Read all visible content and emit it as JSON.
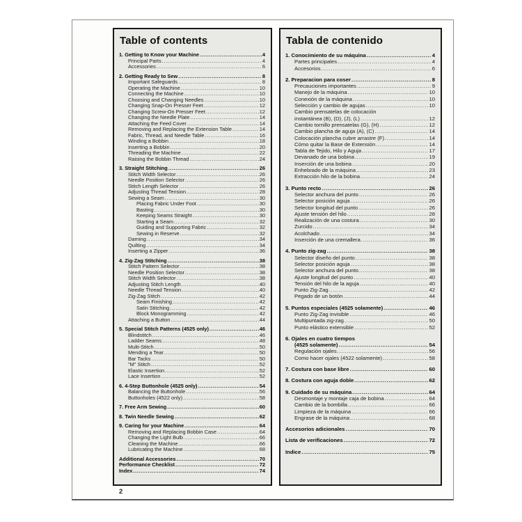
{
  "page_number": "2",
  "english": {
    "title": "Table of contents",
    "entries": [
      {
        "label": "1. Getting to Know your Machine",
        "page": "4",
        "level": 0,
        "bold": 1,
        "gap": 0
      },
      {
        "label": "Principal Parts",
        "page": "4",
        "level": 1,
        "bold": 0,
        "gap": 0
      },
      {
        "label": "Accessories",
        "page": "6",
        "level": 1,
        "bold": 0,
        "gap": 0
      },
      {
        "label": "2. Getting Ready to Sew",
        "page": "8",
        "level": 0,
        "bold": 1,
        "gap": 1
      },
      {
        "label": "Important Safeguards",
        "page": "8",
        "level": 1,
        "bold": 0,
        "gap": 0
      },
      {
        "label": "Operating the Machine",
        "page": "10",
        "level": 1,
        "bold": 0,
        "gap": 0
      },
      {
        "label": "Connecting the Machine",
        "page": "10",
        "level": 1,
        "bold": 0,
        "gap": 0
      },
      {
        "label": "Choosing and Changing Needles",
        "page": "10",
        "level": 1,
        "bold": 0,
        "gap": 0
      },
      {
        "label": "Changing Snap-On Presser Feet",
        "page": "12",
        "level": 1,
        "bold": 0,
        "gap": 0
      },
      {
        "label": "Changing Screw-On Presser Feet",
        "page": "12",
        "level": 1,
        "bold": 0,
        "gap": 0
      },
      {
        "label": "Changing the Needle Plate",
        "page": "14",
        "level": 1,
        "bold": 0,
        "gap": 0
      },
      {
        "label": "Attaching the Feed Cover",
        "page": "14",
        "level": 1,
        "bold": 0,
        "gap": 0
      },
      {
        "label": "Removing and Replacing the Extension Table",
        "page": "14",
        "level": 1,
        "bold": 0,
        "gap": 0
      },
      {
        "label": "Fabric, Thread, and Needle Table",
        "page": "16",
        "level": 1,
        "bold": 0,
        "gap": 0
      },
      {
        "label": "Winding a Bobbin",
        "page": "18",
        "level": 1,
        "bold": 0,
        "gap": 0
      },
      {
        "label": "Inserting a Bobbin",
        "page": "20",
        "level": 1,
        "bold": 0,
        "gap": 0
      },
      {
        "label": "Threading the Machine",
        "page": "22",
        "level": 1,
        "bold": 0,
        "gap": 0
      },
      {
        "label": "Raising the Bobbin Thread",
        "page": "24",
        "level": 1,
        "bold": 0,
        "gap": 0
      },
      {
        "label": "3. Straight Stitching",
        "page": "26",
        "level": 0,
        "bold": 1,
        "gap": 1
      },
      {
        "label": "Stitch Width Selector",
        "page": "26",
        "level": 1,
        "bold": 0,
        "gap": 0
      },
      {
        "label": "Needle Position Selector",
        "page": "26",
        "level": 1,
        "bold": 0,
        "gap": 0
      },
      {
        "label": "Stitch Length Selector",
        "page": "26",
        "level": 1,
        "bold": 0,
        "gap": 0
      },
      {
        "label": "Adjusting Thread Tension",
        "page": "28",
        "level": 1,
        "bold": 0,
        "gap": 0
      },
      {
        "label": "Sewing a Seam",
        "page": "30",
        "level": 1,
        "bold": 0,
        "gap": 0
      },
      {
        "label": "Placing Fabric Under Foot",
        "page": "30",
        "level": 2,
        "bold": 0,
        "gap": 0
      },
      {
        "label": "Basting",
        "page": "30",
        "level": 2,
        "bold": 0,
        "gap": 0
      },
      {
        "label": "Keeping Seams Straight",
        "page": "30",
        "level": 2,
        "bold": 0,
        "gap": 0
      },
      {
        "label": "Starting a Seam",
        "page": "32",
        "level": 2,
        "bold": 0,
        "gap": 0
      },
      {
        "label": "Guiding and Supporting Fabric",
        "page": "32",
        "level": 2,
        "bold": 0,
        "gap": 0
      },
      {
        "label": "Sewing in Reserve",
        "page": "32",
        "level": 2,
        "bold": 0,
        "gap": 0
      },
      {
        "label": "Darning",
        "page": "34",
        "level": 1,
        "bold": 0,
        "gap": 0
      },
      {
        "label": "Quilting",
        "page": "34",
        "level": 1,
        "bold": 0,
        "gap": 0
      },
      {
        "label": "Inserting a Zipper",
        "page": "36",
        "level": 1,
        "bold": 0,
        "gap": 0
      },
      {
        "label": "4. Zig-Zag Stitching",
        "page": "38",
        "level": 0,
        "bold": 1,
        "gap": 1
      },
      {
        "label": "Stitch Pattern Selector",
        "page": "38",
        "level": 1,
        "bold": 0,
        "gap": 0
      },
      {
        "label": "Needle Position Selector",
        "page": "38",
        "level": 1,
        "bold": 0,
        "gap": 0
      },
      {
        "label": "Stitch Width Selector",
        "page": "38",
        "level": 1,
        "bold": 0,
        "gap": 0
      },
      {
        "label": "Adjusting Stitch Length",
        "page": "40",
        "level": 1,
        "bold": 0,
        "gap": 0
      },
      {
        "label": "Needle Thread Tension",
        "page": "40",
        "level": 1,
        "bold": 0,
        "gap": 0
      },
      {
        "label": "Zig-Zag Stitch",
        "page": "42",
        "level": 1,
        "bold": 0,
        "gap": 0
      },
      {
        "label": "Seam Finishing",
        "page": "42",
        "level": 2,
        "bold": 0,
        "gap": 0
      },
      {
        "label": "Satin Stitching",
        "page": "42",
        "level": 2,
        "bold": 0,
        "gap": 0
      },
      {
        "label": "Block Monogramming",
        "page": "42",
        "level": 2,
        "bold": 0,
        "gap": 0
      },
      {
        "label": "Attaching a Button",
        "page": "44",
        "level": 1,
        "bold": 0,
        "gap": 0
      },
      {
        "label": "5. Special Stitch Patterns (4525 only)",
        "page": "46",
        "level": 0,
        "bold": 1,
        "gap": 1
      },
      {
        "label": "Blindstitch",
        "page": "46",
        "level": 1,
        "bold": 0,
        "gap": 0
      },
      {
        "label": "Ladder Seams",
        "page": "48",
        "level": 1,
        "bold": 0,
        "gap": 0
      },
      {
        "label": "Multi-Stitch",
        "page": "50",
        "level": 1,
        "bold": 0,
        "gap": 0
      },
      {
        "label": "Mending a Tear",
        "page": "50",
        "level": 1,
        "bold": 0,
        "gap": 0
      },
      {
        "label": "Bar Tacks",
        "page": "50",
        "level": 1,
        "bold": 0,
        "gap": 0
      },
      {
        "label": "\"M\" Stitch",
        "page": "52",
        "level": 1,
        "bold": 0,
        "gap": 0
      },
      {
        "label": "Elastic Insertion",
        "page": "52",
        "level": 1,
        "bold": 0,
        "gap": 0
      },
      {
        "label": "Lace Insertion",
        "page": "52",
        "level": 1,
        "bold": 0,
        "gap": 0
      },
      {
        "label": "6. 4-Step Buttonhole (4525 only)",
        "page": "54",
        "level": 0,
        "bold": 1,
        "gap": 1
      },
      {
        "label": "Balancing the Buttonhole",
        "page": "56",
        "level": 1,
        "bold": 0,
        "gap": 0
      },
      {
        "label": "Buttonholes (4522 only)",
        "page": "58",
        "level": 1,
        "bold": 0,
        "gap": 0
      },
      {
        "label": "7. Free Arm Sewing",
        "page": "60",
        "level": 0,
        "bold": 1,
        "gap": 1
      },
      {
        "label": "8. Twin Needle Sewing",
        "page": "62",
        "level": 0,
        "bold": 1,
        "gap": 1
      },
      {
        "label": "9. Caring for your Machine",
        "page": "64",
        "level": 0,
        "bold": 1,
        "gap": 1
      },
      {
        "label": "Removing and Replacing Bobbin Case",
        "page": "64",
        "level": 1,
        "bold": 0,
        "gap": 0
      },
      {
        "label": "Changing the Light Bulb",
        "page": "66",
        "level": 1,
        "bold": 0,
        "gap": 0
      },
      {
        "label": "Cleaning the Machine",
        "page": "66",
        "level": 1,
        "bold": 0,
        "gap": 0
      },
      {
        "label": "Lubricating the Machine",
        "page": "68",
        "level": 1,
        "bold": 0,
        "gap": 0
      },
      {
        "label": "Additional Accessories",
        "page": "70",
        "level": 0,
        "bold": 1,
        "gap": 1
      },
      {
        "label": "Performance Checklist",
        "page": "72",
        "level": 0,
        "bold": 1,
        "gap": 0
      },
      {
        "label": "Index",
        "page": "74",
        "level": 0,
        "bold": 1,
        "gap": 0
      }
    ]
  },
  "spanish": {
    "title": "Tabla de contenido",
    "entries": [
      {
        "label": "1. Conocimiento de su máquina",
        "page": "4",
        "level": 0,
        "bold": 1,
        "gap": 0
      },
      {
        "label": "Partes principales",
        "page": "4",
        "level": 1,
        "bold": 0,
        "gap": 0
      },
      {
        "label": "Accesorios",
        "page": "6",
        "level": 1,
        "bold": 0,
        "gap": 0
      },
      {
        "label": "2. Preparacion para coser",
        "page": "8",
        "level": 0,
        "bold": 1,
        "gap": 1
      },
      {
        "label": "Precauciones importantes",
        "page": "9",
        "level": 1,
        "bold": 0,
        "gap": 0
      },
      {
        "label": "Manejo de la máquina",
        "page": "10",
        "level": 1,
        "bold": 0,
        "gap": 0
      },
      {
        "label": "Conexión de la máquina",
        "page": "10",
        "level": 1,
        "bold": 0,
        "gap": 0
      },
      {
        "label": "Selección y cambio de agujas",
        "page": "10",
        "level": 1,
        "bold": 0,
        "gap": 0
      },
      {
        "label": "Cambio prensatelas de colocación",
        "page": "",
        "level": 1,
        "bold": 0,
        "gap": 0
      },
      {
        "label": "instantánea (B), (D), (J), (L)",
        "page": "12",
        "level": 1,
        "bold": 0,
        "gap": 0
      },
      {
        "label": "Cambio tornillo prensatelas (G), (H)",
        "page": "12",
        "level": 1,
        "bold": 0,
        "gap": 0
      },
      {
        "label": "Cambio plancha de aguja (A), (C)",
        "page": "14",
        "level": 1,
        "bold": 0,
        "gap": 0
      },
      {
        "label": "Colocación plancha cubre arrastre (F)",
        "page": "14",
        "level": 1,
        "bold": 0,
        "gap": 0
      },
      {
        "label": "Cómo quitar la Base de Extensión",
        "page": "14",
        "level": 1,
        "bold": 0,
        "gap": 0
      },
      {
        "label": "Tabla de Tejido, Hilo y Aguja",
        "page": "17",
        "level": 1,
        "bold": 0,
        "gap": 0
      },
      {
        "label": "Devanado de una bobina",
        "page": "19",
        "level": 1,
        "bold": 0,
        "gap": 0
      },
      {
        "label": "Inserción de una bobina",
        "page": "20",
        "level": 1,
        "bold": 0,
        "gap": 0
      },
      {
        "label": "Enhebrado de la máquina",
        "page": "23",
        "level": 1,
        "bold": 0,
        "gap": 0
      },
      {
        "label": "Extracción hilo de la bobina",
        "page": "24",
        "level": 1,
        "bold": 0,
        "gap": 0
      },
      {
        "label": "3. Punto recto",
        "page": "26",
        "level": 0,
        "bold": 1,
        "gap": 1
      },
      {
        "label": "Selector anchura del punto",
        "page": "26",
        "level": 1,
        "bold": 0,
        "gap": 0
      },
      {
        "label": "Selector posición aguja",
        "page": "26",
        "level": 1,
        "bold": 0,
        "gap": 0
      },
      {
        "label": "Selector longitud del punto",
        "page": "26",
        "level": 1,
        "bold": 0,
        "gap": 0
      },
      {
        "label": "Ajuste tensión del hilo",
        "page": "28",
        "level": 1,
        "bold": 0,
        "gap": 0
      },
      {
        "label": "Realización de una costura",
        "page": "30",
        "level": 1,
        "bold": 0,
        "gap": 0
      },
      {
        "label": "Zurcido",
        "page": "34",
        "level": 1,
        "bold": 0,
        "gap": 0
      },
      {
        "label": "Acolchado",
        "page": "34",
        "level": 1,
        "bold": 0,
        "gap": 0
      },
      {
        "label": "Inserción de una cremallera",
        "page": "36",
        "level": 1,
        "bold": 0,
        "gap": 0
      },
      {
        "label": "4. Punto zig-zag",
        "page": "38",
        "level": 0,
        "bold": 1,
        "gap": 1
      },
      {
        "label": "Selector diseño del punto",
        "page": "38",
        "level": 1,
        "bold": 0,
        "gap": 0
      },
      {
        "label": "Selector posición aguja",
        "page": "38",
        "level": 1,
        "bold": 0,
        "gap": 0
      },
      {
        "label": "Selector anchura del punto",
        "page": "38",
        "level": 1,
        "bold": 0,
        "gap": 0
      },
      {
        "label": "Ajuste longitud del punto",
        "page": "40",
        "level": 1,
        "bold": 0,
        "gap": 0
      },
      {
        "label": "Tensión del hilo de la aguja",
        "page": "40",
        "level": 1,
        "bold": 0,
        "gap": 0
      },
      {
        "label": "Punto Zig-Zag",
        "page": "42",
        "level": 1,
        "bold": 0,
        "gap": 0
      },
      {
        "label": "Pegado de un botón",
        "page": "44",
        "level": 1,
        "bold": 0,
        "gap": 0
      },
      {
        "label": "5. Puntos especiales (4525 solamente)",
        "page": "46",
        "level": 0,
        "bold": 1,
        "gap": 1
      },
      {
        "label": "Punto Zig-Zag invisible",
        "page": "46",
        "level": 1,
        "bold": 0,
        "gap": 0
      },
      {
        "label": "Multipuntada zig-zag",
        "page": "50",
        "level": 1,
        "bold": 0,
        "gap": 0
      },
      {
        "label": "Punto elástico extensible",
        "page": "52",
        "level": 1,
        "bold": 0,
        "gap": 0
      },
      {
        "label": "6. Ojales en cuatro tiempos",
        "page": "",
        "level": 0,
        "bold": 1,
        "gap": 1
      },
      {
        "label": "(4525 solamente)",
        "page": "54",
        "level": 1,
        "bold": 1,
        "gap": 0
      },
      {
        "label": "Regulación ojales",
        "page": "56",
        "level": 1,
        "bold": 0,
        "gap": 0
      },
      {
        "label": "Como hacer ojales (4522 solamente)",
        "page": "58",
        "level": 1,
        "bold": 0,
        "gap": 0
      },
      {
        "label": "7. Costura con base libre",
        "page": "60",
        "level": 0,
        "bold": 1,
        "gap": 1
      },
      {
        "label": "8. Costura con aguja doble",
        "page": "62",
        "level": 0,
        "bold": 1,
        "gap": 1
      },
      {
        "label": "9. Cuidado de su máquina",
        "page": "64",
        "level": 0,
        "bold": 1,
        "gap": 1
      },
      {
        "label": "Desmontaje y montaje caja de bobina",
        "page": "64",
        "level": 1,
        "bold": 0,
        "gap": 0
      },
      {
        "label": "Cambio de la bombilla",
        "page": "66",
        "level": 1,
        "bold": 0,
        "gap": 0
      },
      {
        "label": "Limpieza de la máquina",
        "page": "66",
        "level": 1,
        "bold": 0,
        "gap": 0
      },
      {
        "label": "Engrase de la máquina",
        "page": "68",
        "level": 1,
        "bold": 0,
        "gap": 0
      },
      {
        "label": "Accesorios adicionales",
        "page": "70",
        "level": 0,
        "bold": 1,
        "gap": 1
      },
      {
        "label": "Lista de verificaciones",
        "page": "72",
        "level": 0,
        "bold": 1,
        "gap": 1
      },
      {
        "label": "Indice",
        "page": "75",
        "level": 0,
        "bold": 1,
        "gap": 1
      }
    ]
  }
}
